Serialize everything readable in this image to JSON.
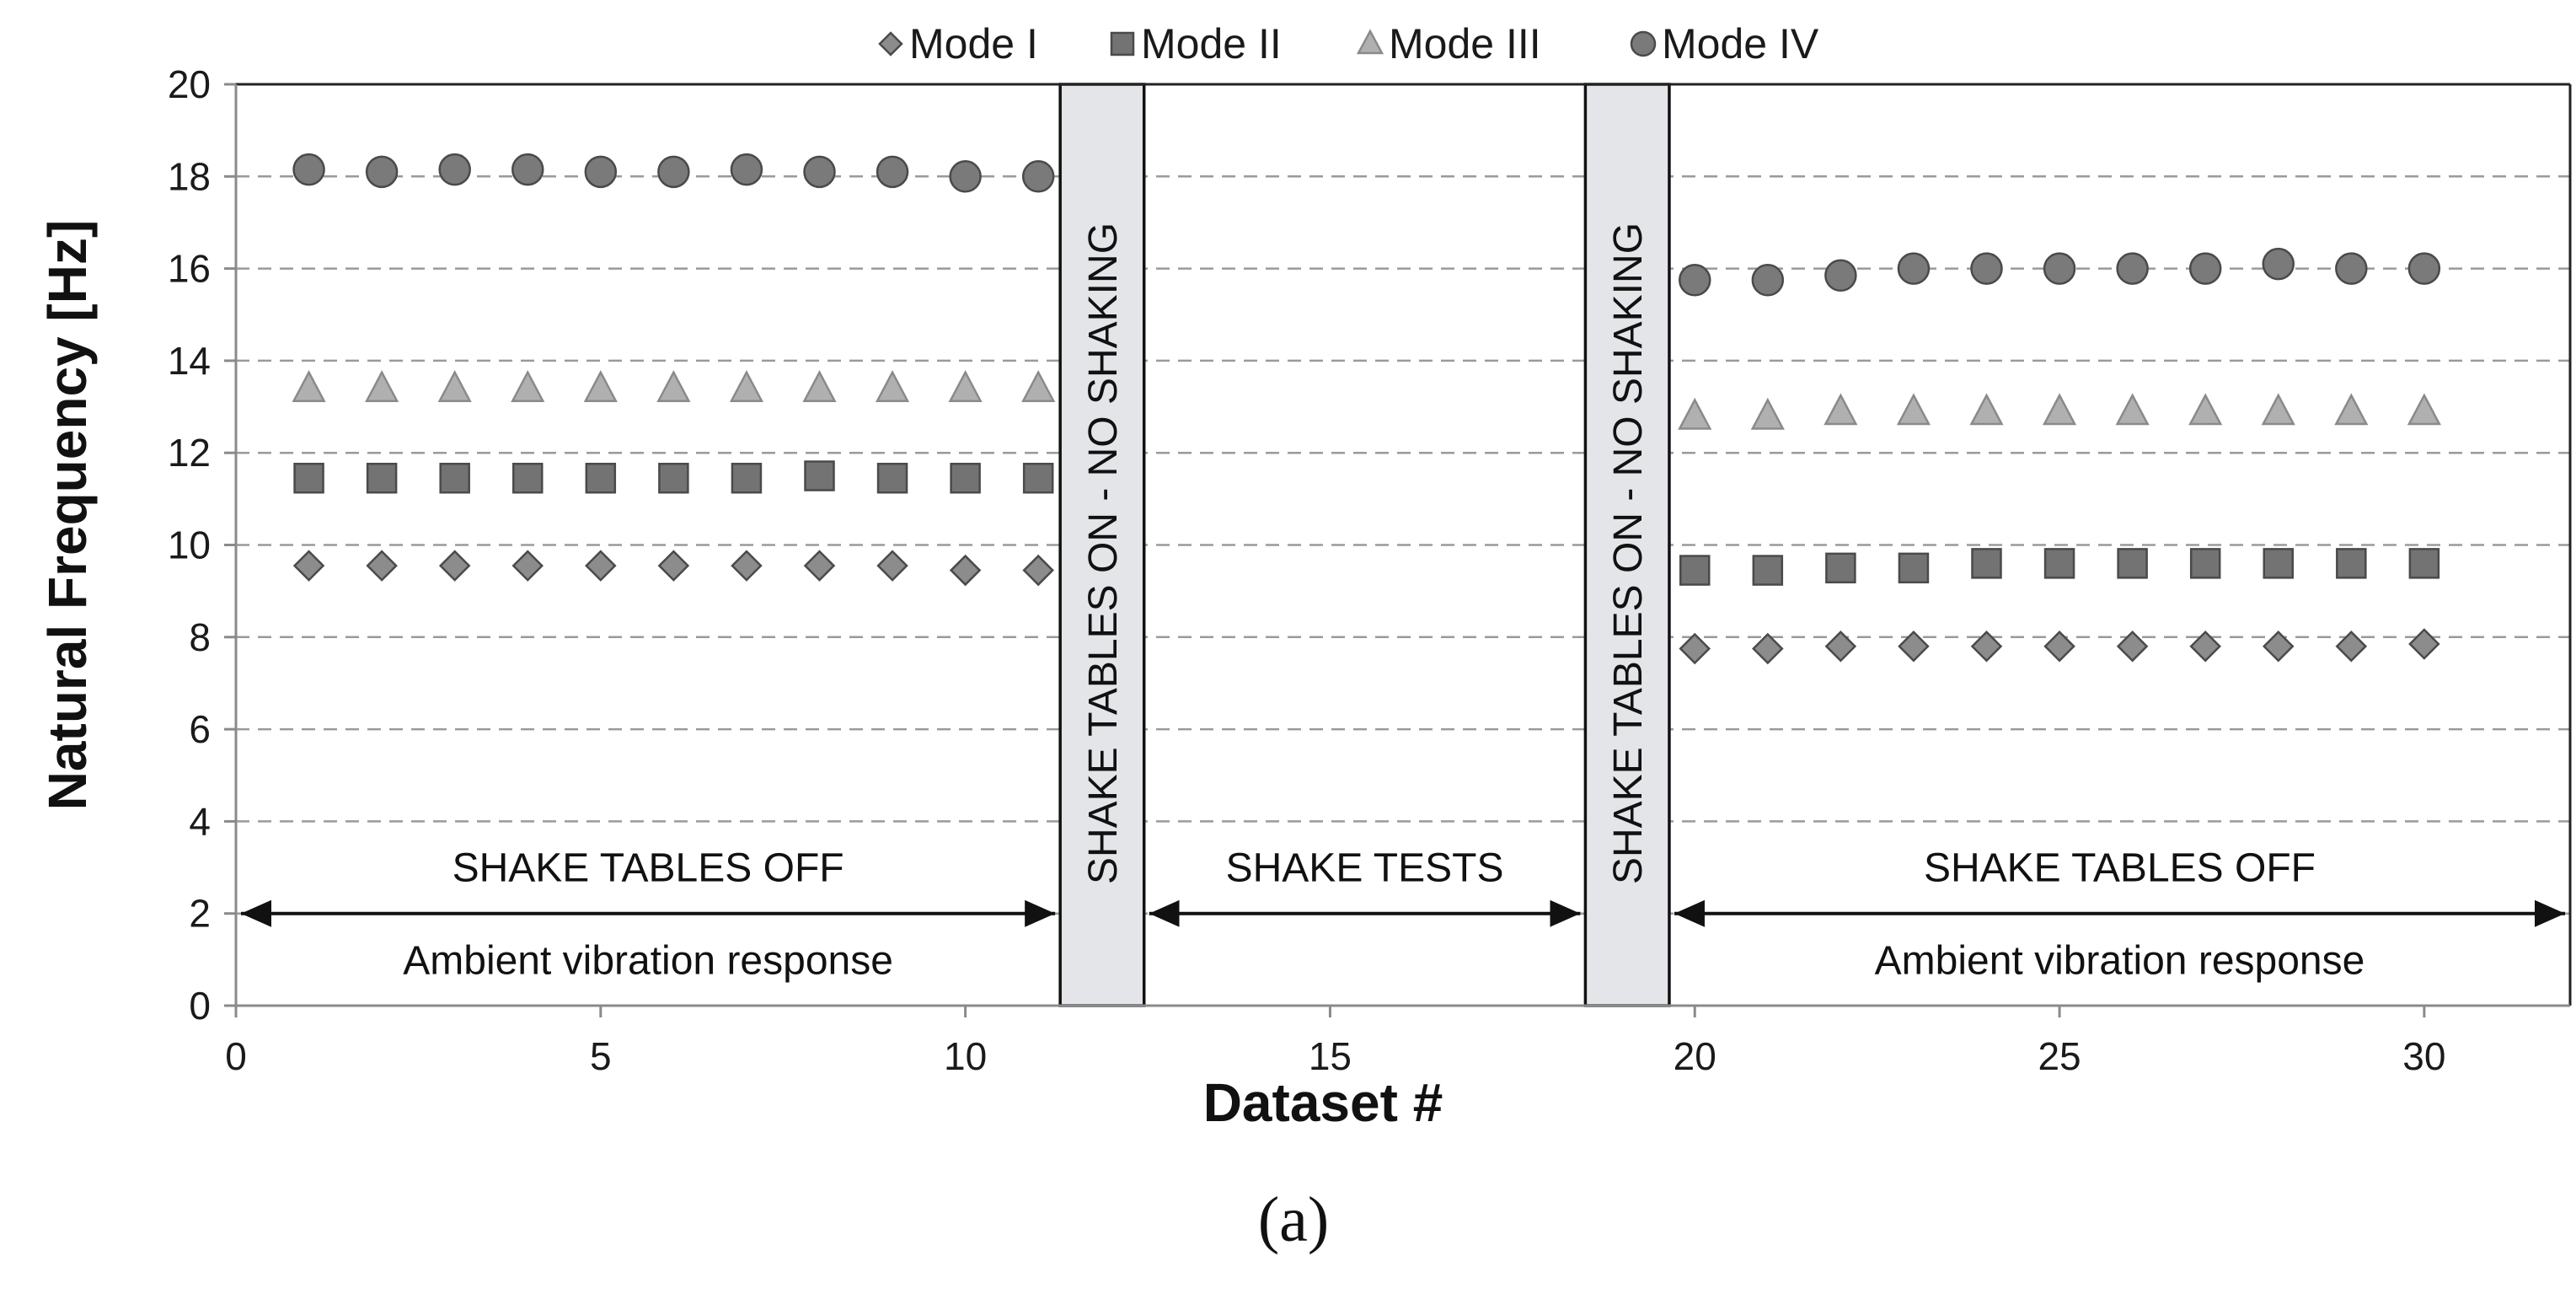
{
  "chart_data": {
    "type": "scatter",
    "title": "",
    "xlabel": "Dataset #",
    "ylabel": "Natural Frequency [Hz]",
    "xlim": [
      0,
      32
    ],
    "ylim": [
      0,
      20
    ],
    "xticks": [
      0,
      5,
      10,
      15,
      20,
      25,
      30
    ],
    "yticks": [
      0,
      2,
      4,
      6,
      8,
      10,
      12,
      14,
      16,
      18,
      20
    ],
    "grid": "horizontal dashed",
    "legend_position": "top",
    "series": [
      {
        "name": "Mode I",
        "marker": "diamond",
        "color": "#8c8c8c",
        "x": [
          1,
          2,
          3,
          4,
          5,
          6,
          7,
          8,
          9,
          10,
          11,
          20,
          21,
          22,
          23,
          24,
          25,
          26,
          27,
          28,
          29,
          30
        ],
        "y": [
          9.55,
          9.55,
          9.55,
          9.55,
          9.55,
          9.55,
          9.55,
          9.55,
          9.55,
          9.45,
          9.45,
          7.75,
          7.75,
          7.8,
          7.8,
          7.8,
          7.8,
          7.8,
          7.8,
          7.8,
          7.8,
          7.85
        ]
      },
      {
        "name": "Mode II",
        "marker": "square",
        "color": "#737373",
        "x": [
          1,
          2,
          3,
          4,
          5,
          6,
          7,
          8,
          9,
          10,
          11,
          20,
          21,
          22,
          23,
          24,
          25,
          26,
          27,
          28,
          29,
          30
        ],
        "y": [
          11.45,
          11.45,
          11.45,
          11.45,
          11.45,
          11.45,
          11.45,
          11.5,
          11.45,
          11.45,
          11.45,
          9.45,
          9.45,
          9.5,
          9.5,
          9.6,
          9.6,
          9.6,
          9.6,
          9.6,
          9.6,
          9.6
        ]
      },
      {
        "name": "Mode III",
        "marker": "triangle",
        "color": "#b0b0b0",
        "x": [
          1,
          2,
          3,
          4,
          5,
          6,
          7,
          8,
          9,
          10,
          11,
          20,
          21,
          22,
          23,
          24,
          25,
          26,
          27,
          28,
          29,
          30
        ],
        "y": [
          13.4,
          13.4,
          13.4,
          13.4,
          13.4,
          13.4,
          13.4,
          13.4,
          13.4,
          13.4,
          13.4,
          12.8,
          12.8,
          12.9,
          12.9,
          12.9,
          12.9,
          12.9,
          12.9,
          12.9,
          12.9,
          12.9
        ]
      },
      {
        "name": "Mode IV",
        "marker": "circle",
        "color": "#7a7a7a",
        "x": [
          1,
          2,
          3,
          4,
          5,
          6,
          7,
          8,
          9,
          10,
          11,
          20,
          21,
          22,
          23,
          24,
          25,
          26,
          27,
          28,
          29,
          30
        ],
        "y": [
          18.15,
          18.1,
          18.15,
          18.15,
          18.1,
          18.1,
          18.15,
          18.1,
          18.1,
          18.0,
          18.0,
          15.75,
          15.75,
          15.85,
          16.0,
          16.0,
          16.0,
          16.0,
          16.0,
          16.1,
          16.0,
          16.0
        ]
      }
    ],
    "bands": [
      {
        "x_start": 11.3,
        "x_end": 12.45,
        "label": "SHAKE TABLES ON - NO SHAKING"
      },
      {
        "x_start": 18.5,
        "x_end": 19.65,
        "label": "SHAKE TABLES ON - NO SHAKING"
      }
    ],
    "spans": [
      {
        "x_start": 0,
        "x_end": 11.3,
        "top_label": "SHAKE TABLES OFF",
        "bottom_label": "Ambient vibration response"
      },
      {
        "x_start": 12.45,
        "x_end": 18.5,
        "top_label": "SHAKE TESTS",
        "bottom_label": ""
      },
      {
        "x_start": 19.65,
        "x_end": 32,
        "top_label": "SHAKE TABLES OFF",
        "bottom_label": "Ambient vibration response"
      }
    ],
    "arrow_level": 2,
    "caption": "(a)"
  }
}
